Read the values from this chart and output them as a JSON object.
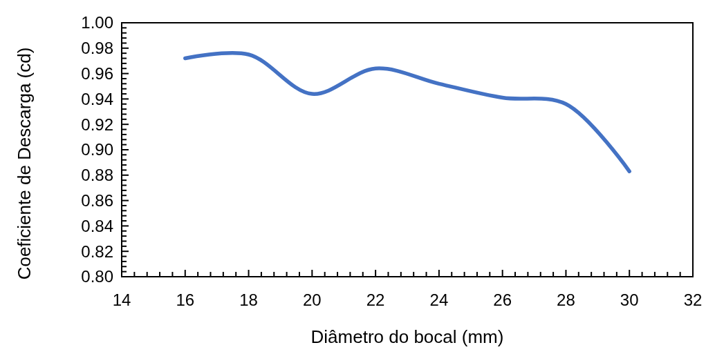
{
  "chart_data": {
    "type": "line",
    "xlabel": "Diâmetro do bocal (mm)",
    "ylabel": "Coeficiente de Descarga (cd)",
    "x": [
      16,
      18,
      20,
      22,
      24,
      26,
      28,
      30
    ],
    "series": [
      {
        "color": "#4472c4",
        "values": [
          0.972,
          0.975,
          0.944,
          0.964,
          0.952,
          0.941,
          0.936,
          0.883
        ]
      }
    ],
    "xlim": [
      14,
      32
    ],
    "xticks": [
      14,
      {
        "value": 14.4,
        "label": null
      },
      {
        "value": 14.8,
        "label": null
      },
      {
        "value": 15.2,
        "label": null
      },
      {
        "value": 15.6,
        "label": null
      },
      16,
      {
        "value": 16.4,
        "label": null
      },
      {
        "value": 16.8,
        "label": null
      },
      {
        "value": 17.2,
        "label": null
      },
      {
        "value": 17.6,
        "label": null
      },
      18,
      {
        "value": 18.4,
        "label": null
      },
      {
        "value": 18.8,
        "label": null
      },
      {
        "value": 19.2,
        "label": null
      },
      {
        "value": 19.6,
        "label": null
      },
      20,
      {
        "value": 20.4,
        "label": null
      },
      {
        "value": 20.8,
        "label": null
      },
      {
        "value": 21.2,
        "label": null
      },
      {
        "value": 21.6,
        "label": null
      },
      22,
      {
        "value": 22.4,
        "label": null
      },
      {
        "value": 22.8,
        "label": null
      },
      {
        "value": 23.2,
        "label": null
      },
      {
        "value": 23.6,
        "label": null
      },
      24,
      {
        "value": 24.4,
        "label": null
      },
      {
        "value": 24.8,
        "label": null
      },
      {
        "value": 25.2,
        "label": null
      },
      {
        "value": 25.6,
        "label": null
      },
      26,
      {
        "value": 26.4,
        "label": null
      },
      {
        "value": 26.8,
        "label": null
      },
      {
        "value": 27.2,
        "label": null
      },
      {
        "value": 27.6,
        "label": null
      },
      28,
      {
        "value": 28.4,
        "label": null
      },
      {
        "value": 28.8,
        "label": null
      },
      {
        "value": 29.2,
        "label": null
      },
      {
        "value": 29.6,
        "label": null
      },
      30,
      {
        "value": 30.4,
        "label": null
      },
      {
        "value": 30.8,
        "label": null
      },
      {
        "value": 31.2,
        "label": null
      },
      {
        "value": 31.6,
        "label": null
      },
      32
    ],
    "ylim": [
      0.8,
      1.0
    ],
    "yticks": [
      {
        "value": 0.8,
        "label": "0.80"
      },
      {
        "value": 0.804,
        "label": null
      },
      {
        "value": 0.808,
        "label": null
      },
      {
        "value": 0.812,
        "label": null
      },
      {
        "value": 0.816,
        "label": null
      },
      {
        "value": 0.82,
        "label": "0.82"
      },
      {
        "value": 0.824,
        "label": null
      },
      {
        "value": 0.828,
        "label": null
      },
      {
        "value": 0.832,
        "label": null
      },
      {
        "value": 0.836,
        "label": null
      },
      {
        "value": 0.84,
        "label": "0.84"
      },
      {
        "value": 0.844,
        "label": null
      },
      {
        "value": 0.848,
        "label": null
      },
      {
        "value": 0.852,
        "label": null
      },
      {
        "value": 0.856,
        "label": null
      },
      {
        "value": 0.86,
        "label": "0.86"
      },
      {
        "value": 0.864,
        "label": null
      },
      {
        "value": 0.868,
        "label": null
      },
      {
        "value": 0.872,
        "label": null
      },
      {
        "value": 0.876,
        "label": null
      },
      {
        "value": 0.88,
        "label": "0.88"
      },
      {
        "value": 0.884,
        "label": null
      },
      {
        "value": 0.888,
        "label": null
      },
      {
        "value": 0.892,
        "label": null
      },
      {
        "value": 0.896,
        "label": null
      },
      {
        "value": 0.9,
        "label": "0.90"
      },
      {
        "value": 0.904,
        "label": null
      },
      {
        "value": 0.908,
        "label": null
      },
      {
        "value": 0.912,
        "label": null
      },
      {
        "value": 0.916,
        "label": null
      },
      {
        "value": 0.92,
        "label": "0.92"
      },
      {
        "value": 0.924,
        "label": null
      },
      {
        "value": 0.928,
        "label": null
      },
      {
        "value": 0.932,
        "label": null
      },
      {
        "value": 0.936,
        "label": null
      },
      {
        "value": 0.94,
        "label": "0.94"
      },
      {
        "value": 0.944,
        "label": null
      },
      {
        "value": 0.948,
        "label": null
      },
      {
        "value": 0.952,
        "label": null
      },
      {
        "value": 0.956,
        "label": null
      },
      {
        "value": 0.96,
        "label": "0.96"
      },
      {
        "value": 0.964,
        "label": null
      },
      {
        "value": 0.968,
        "label": null
      },
      {
        "value": 0.972,
        "label": null
      },
      {
        "value": 0.976,
        "label": null
      },
      {
        "value": 0.98,
        "label": "0.98"
      },
      {
        "value": 0.984,
        "label": null
      },
      {
        "value": 0.988,
        "label": null
      },
      {
        "value": 0.992,
        "label": null
      },
      {
        "value": 0.996,
        "label": null
      },
      {
        "value": 1.0,
        "label": "1.00"
      }
    ],
    "grid": false,
    "marker": "none",
    "line_style": "solid"
  }
}
